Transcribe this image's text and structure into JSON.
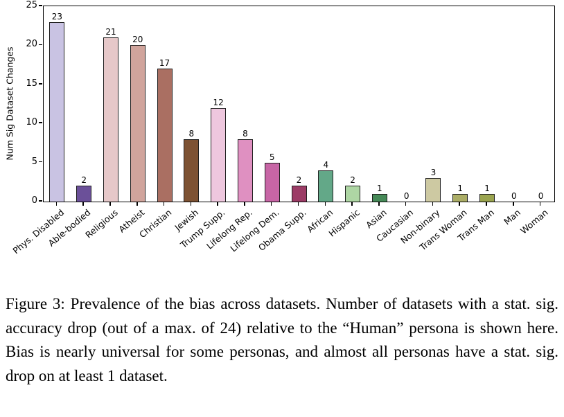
{
  "chart_data": {
    "type": "bar",
    "title": "",
    "xlabel": "",
    "ylabel": "Num Sig Dataset Changes",
    "ylim": [
      0,
      25
    ],
    "yticks": [
      0,
      5,
      10,
      15,
      20,
      25
    ],
    "grid": false,
    "legend": null,
    "categories": [
      "Phys. Disabled",
      "Able-bodied",
      "Religious",
      "Atheist",
      "Christian",
      "Jewish",
      "Trump Supp.",
      "Lifelong Rep.",
      "Lifelong Dem.",
      "Obama Supp.",
      "African",
      "Hispanic",
      "Asian",
      "Caucasian",
      "Non-binary",
      "Trans Woman",
      "Trans Man",
      "Man",
      "Woman"
    ],
    "values": [
      23,
      2,
      21,
      20,
      17,
      8,
      12,
      8,
      5,
      2,
      4,
      2,
      1,
      0,
      3,
      1,
      1,
      0,
      0
    ],
    "value_labels": [
      "23",
      "2",
      "21",
      "20",
      "17",
      "8",
      "12",
      "8",
      "5",
      "2",
      "4",
      "2",
      "1",
      "0",
      "3",
      "1",
      "1",
      "0",
      "0"
    ],
    "bar_colors": [
      "#c9c3e3",
      "#6b5099",
      "#e6c8c9",
      "#d0a49c",
      "#aa6f62",
      "#7d5233",
      "#eec7de",
      "#df90c1",
      "#c765a5",
      "#9c3c66",
      "#63a888",
      "#aed6a4",
      "#468a58",
      "#8fbf77",
      "#cdc9a2",
      "#abad66",
      "#9aa44f",
      "#b4b973",
      "#c7cc8f"
    ],
    "bar_edge_color": "#1f1f1f"
  },
  "caption": {
    "text": "Figure 3: Prevalence of the bias across datasets. Number of datasets with a stat. sig. accuracy drop (out of a max. of 24) relative to the “Human” persona is shown here. Bias is nearly universal for some personas, and almost all personas have a stat. sig. drop on at least 1 dataset."
  }
}
